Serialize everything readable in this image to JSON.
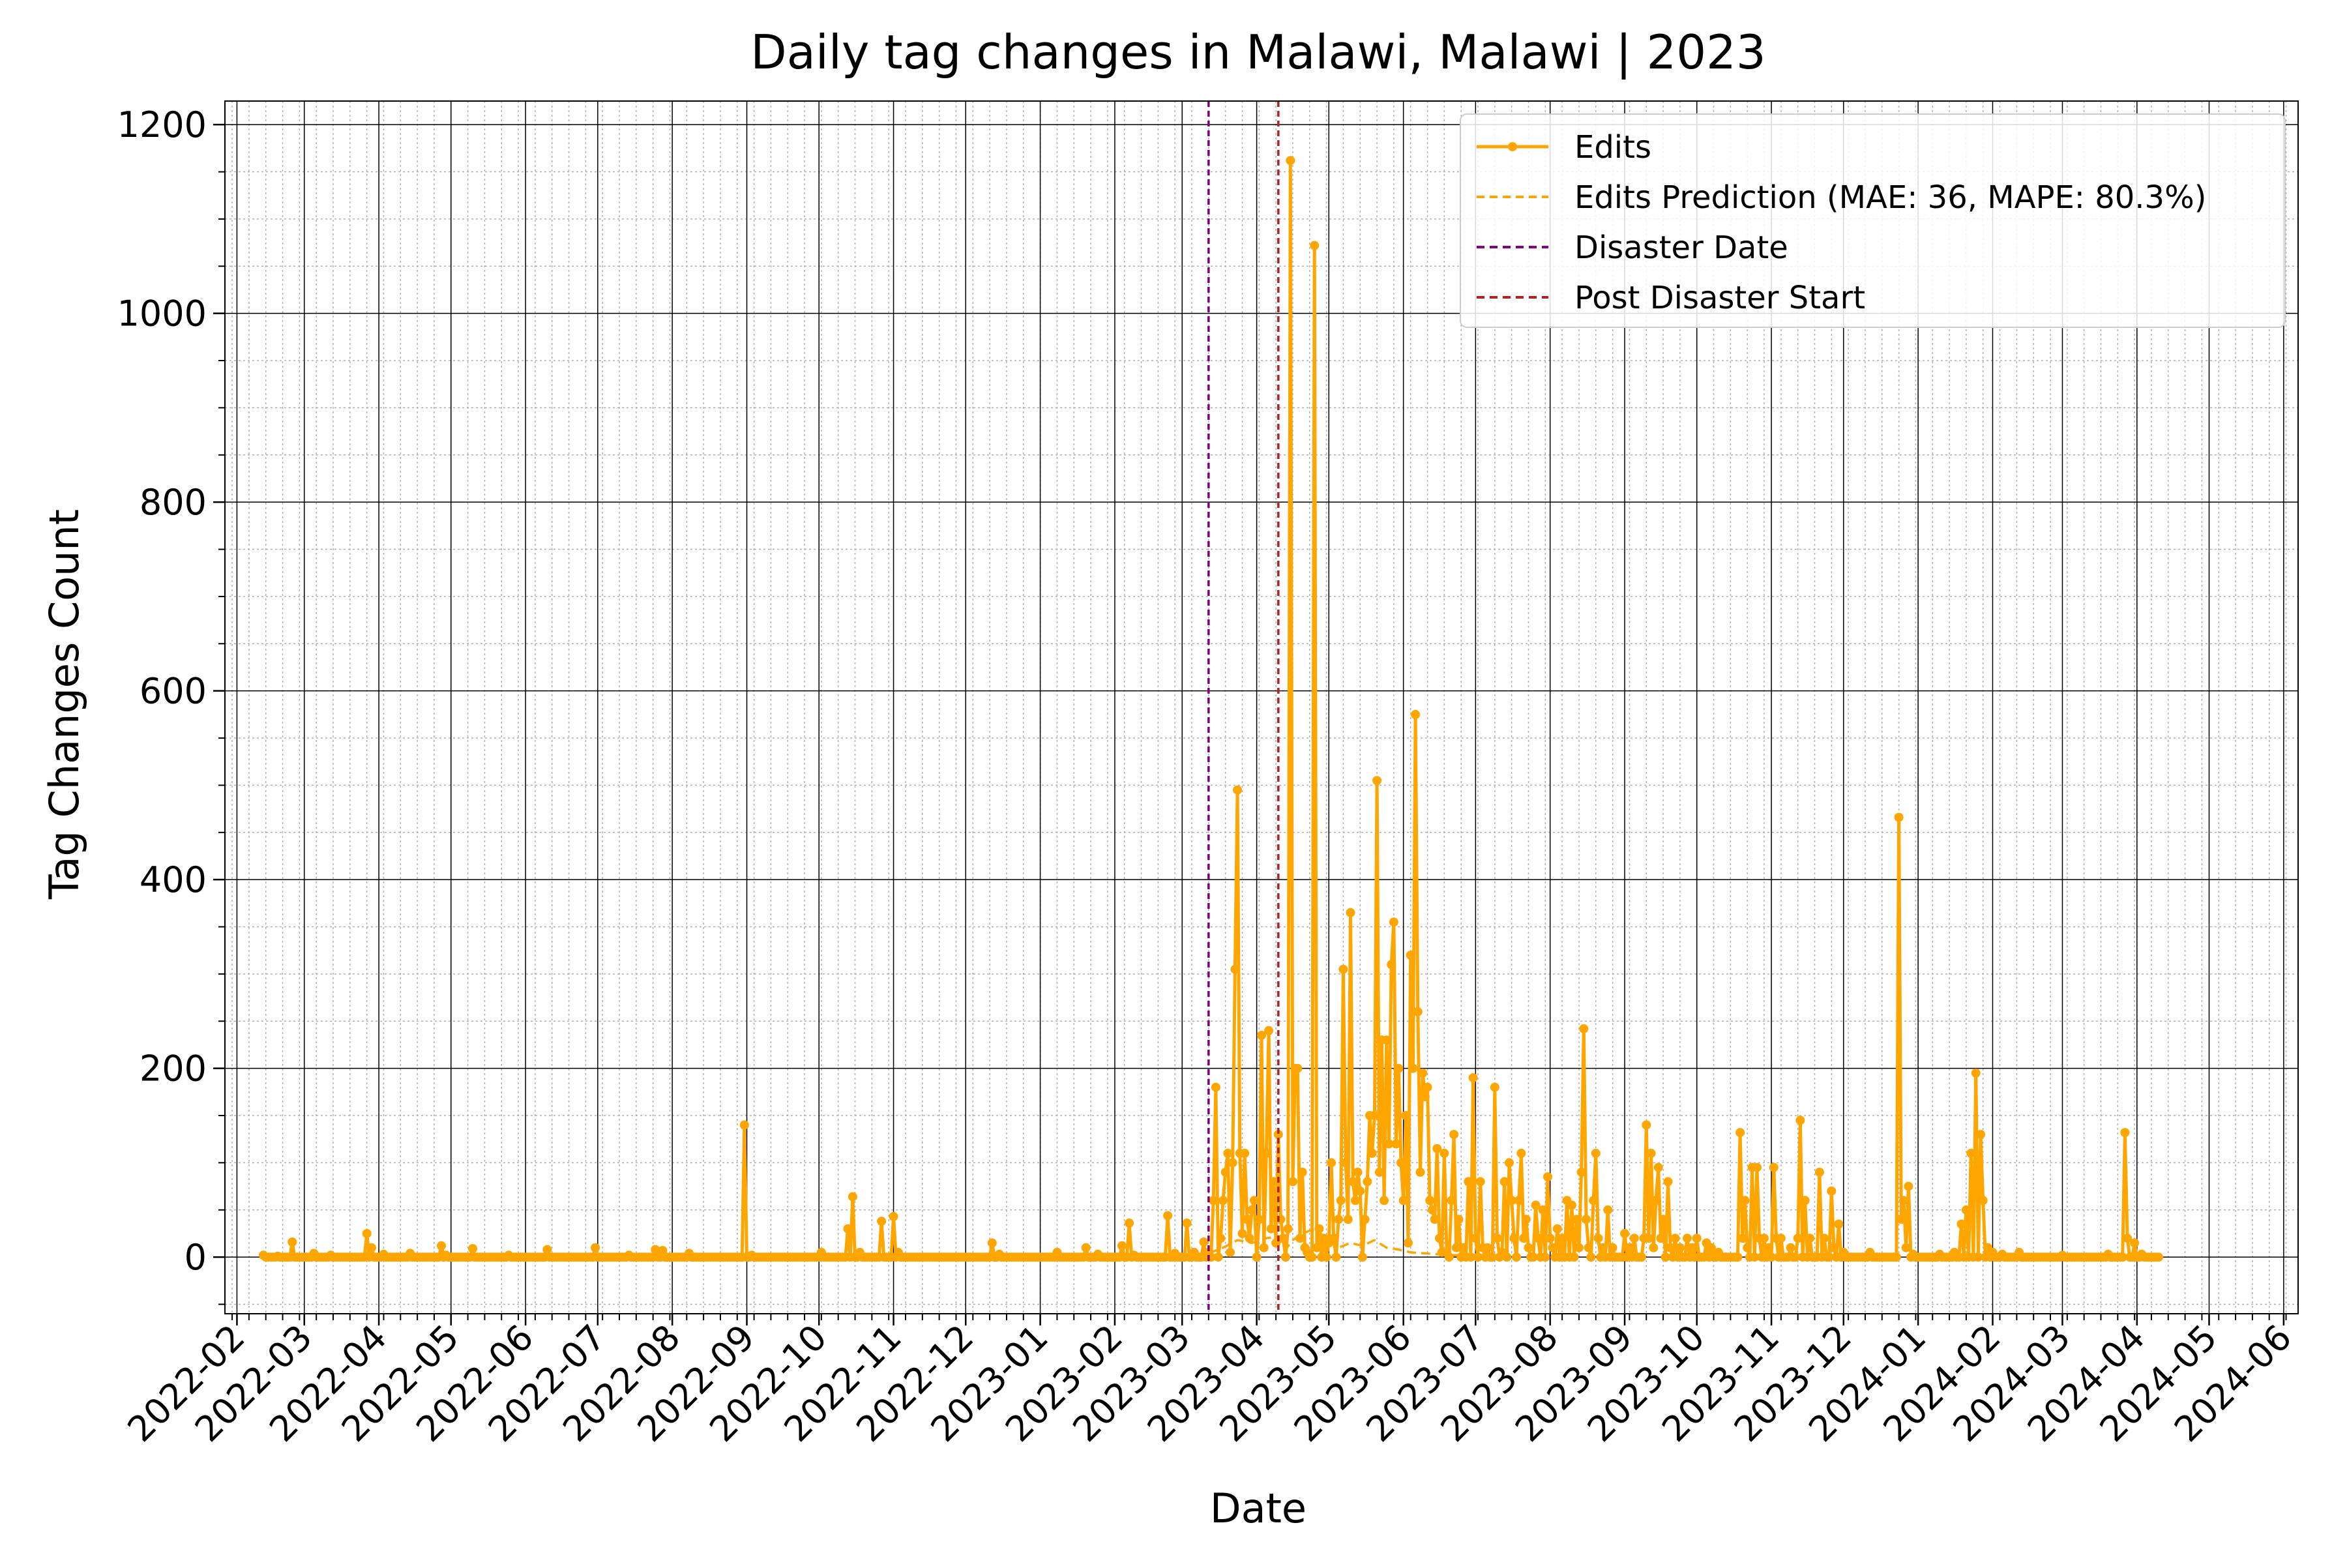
{
  "chart_data": {
    "type": "line",
    "title": "Daily tag changes in Malawi, Malawi | 2023",
    "xlabel": "Date",
    "ylabel": "Tag Changes Count",
    "x_ticks": [
      "2022-02",
      "2022-03",
      "2022-04",
      "2022-05",
      "2022-06",
      "2022-07",
      "2022-08",
      "2022-09",
      "2022-10",
      "2022-11",
      "2022-12",
      "2023-01",
      "2023-02",
      "2023-03",
      "2023-04",
      "2023-05",
      "2023-06",
      "2023-07",
      "2023-08",
      "2023-09",
      "2023-10",
      "2023-11",
      "2023-12",
      "2024-01",
      "2024-02",
      "2024-03",
      "2024-04",
      "2024-05",
      "2024-06"
    ],
    "y_ticks": [
      0,
      200,
      400,
      600,
      800,
      1000,
      1200
    ],
    "xlim": [
      "2022-01-27",
      "2024-06-07"
    ],
    "ylim": [
      -60,
      1225
    ],
    "grid": true,
    "legend_position": "top-right",
    "legend": [
      {
        "label": "Edits",
        "style": "solid-marker",
        "color": "#FFA500"
      },
      {
        "label": "Edits Prediction (MAE: 36, MAPE: 80.3%)",
        "style": "dashed",
        "color": "#FFA500"
      },
      {
        "label": "Disaster Date",
        "style": "dashed",
        "color": "#800080"
      },
      {
        "label": "Post Disaster Start",
        "style": "dashed",
        "color": "#B22222"
      }
    ],
    "vlines": [
      {
        "name": "Disaster Date",
        "date": "2023-03-12",
        "color": "#800080"
      },
      {
        "name": "Post Disaster Start",
        "date": "2023-04-10",
        "color": "#B22222"
      }
    ],
    "series": [
      {
        "name": "Edits",
        "color": "#FFA500",
        "baseline": 0,
        "start": "2022-02-12",
        "end": "2024-04-10",
        "points": [
          [
            "2022-02-12",
            2
          ],
          [
            "2022-02-18",
            1
          ],
          [
            "2022-02-24",
            16
          ],
          [
            "2022-02-26",
            0
          ],
          [
            "2022-03-05",
            4
          ],
          [
            "2022-03-12",
            2
          ],
          [
            "2022-03-27",
            25
          ],
          [
            "2022-03-29",
            10
          ],
          [
            "2022-04-03",
            3
          ],
          [
            "2022-04-14",
            4
          ],
          [
            "2022-04-27",
            12
          ],
          [
            "2022-04-29",
            2
          ],
          [
            "2022-05-10",
            9
          ],
          [
            "2022-05-25",
            2
          ],
          [
            "2022-06-10",
            8
          ],
          [
            "2022-06-30",
            10
          ],
          [
            "2022-07-14",
            2
          ],
          [
            "2022-07-25",
            8
          ],
          [
            "2022-07-28",
            7
          ],
          [
            "2022-08-08",
            4
          ],
          [
            "2022-08-31",
            140
          ],
          [
            "2022-09-03",
            2
          ],
          [
            "2022-10-02",
            5
          ],
          [
            "2022-10-13",
            30
          ],
          [
            "2022-10-15",
            64
          ],
          [
            "2022-10-18",
            5
          ],
          [
            "2022-10-27",
            38
          ],
          [
            "2022-11-01",
            43
          ],
          [
            "2022-11-03",
            5
          ],
          [
            "2022-12-12",
            15
          ],
          [
            "2022-12-15",
            3
          ],
          [
            "2023-01-08",
            5
          ],
          [
            "2023-01-20",
            10
          ],
          [
            "2023-01-25",
            3
          ],
          [
            "2023-02-04",
            12
          ],
          [
            "2023-02-07",
            36
          ],
          [
            "2023-02-09",
            2
          ],
          [
            "2023-02-23",
            44
          ],
          [
            "2023-02-26",
            4
          ],
          [
            "2023-03-03",
            36
          ],
          [
            "2023-03-06",
            5
          ],
          [
            "2023-03-10",
            16
          ],
          [
            "2023-03-12",
            5
          ],
          [
            "2023-03-14",
            60
          ],
          [
            "2023-03-15",
            180
          ],
          [
            "2023-03-17",
            20
          ],
          [
            "2023-03-18",
            60
          ],
          [
            "2023-03-19",
            90
          ],
          [
            "2023-03-20",
            110
          ],
          [
            "2023-03-21",
            5
          ],
          [
            "2023-03-22",
            100
          ],
          [
            "2023-03-23",
            305
          ],
          [
            "2023-03-24",
            495
          ],
          [
            "2023-03-25",
            110
          ],
          [
            "2023-03-26",
            25
          ],
          [
            "2023-03-27",
            110
          ],
          [
            "2023-03-28",
            40
          ],
          [
            "2023-03-29",
            20
          ],
          [
            "2023-03-30",
            50
          ],
          [
            "2023-03-31",
            60
          ],
          [
            "2023-04-02",
            40
          ],
          [
            "2023-04-03",
            235
          ],
          [
            "2023-04-04",
            10
          ],
          [
            "2023-04-05",
            110
          ],
          [
            "2023-04-06",
            240
          ],
          [
            "2023-04-07",
            30
          ],
          [
            "2023-04-08",
            80
          ],
          [
            "2023-04-09",
            15
          ],
          [
            "2023-04-10",
            130
          ],
          [
            "2023-04-11",
            40
          ],
          [
            "2023-04-12",
            20
          ],
          [
            "2023-04-14",
            30
          ],
          [
            "2023-04-15",
            1162
          ],
          [
            "2023-04-16",
            80
          ],
          [
            "2023-04-17",
            200
          ],
          [
            "2023-04-18",
            200
          ],
          [
            "2023-04-19",
            20
          ],
          [
            "2023-04-20",
            90
          ],
          [
            "2023-04-21",
            10
          ],
          [
            "2023-04-22",
            5
          ],
          [
            "2023-04-25",
            1072
          ],
          [
            "2023-04-26",
            10
          ],
          [
            "2023-04-27",
            30
          ],
          [
            "2023-04-29",
            20
          ],
          [
            "2023-05-01",
            15
          ],
          [
            "2023-05-02",
            100
          ],
          [
            "2023-05-03",
            20
          ],
          [
            "2023-05-05",
            40
          ],
          [
            "2023-05-06",
            60
          ],
          [
            "2023-05-07",
            305
          ],
          [
            "2023-05-08",
            100
          ],
          [
            "2023-05-09",
            40
          ],
          [
            "2023-05-10",
            365
          ],
          [
            "2023-05-11",
            80
          ],
          [
            "2023-05-12",
            60
          ],
          [
            "2023-05-13",
            90
          ],
          [
            "2023-05-14",
            70
          ],
          [
            "2023-05-16",
            40
          ],
          [
            "2023-05-17",
            80
          ],
          [
            "2023-05-18",
            150
          ],
          [
            "2023-05-19",
            110
          ],
          [
            "2023-05-20",
            150
          ],
          [
            "2023-05-21",
            505
          ],
          [
            "2023-05-22",
            90
          ],
          [
            "2023-05-23",
            230
          ],
          [
            "2023-05-24",
            60
          ],
          [
            "2023-05-25",
            230
          ],
          [
            "2023-05-26",
            120
          ],
          [
            "2023-05-27",
            310
          ],
          [
            "2023-05-28",
            355
          ],
          [
            "2023-05-29",
            120
          ],
          [
            "2023-05-30",
            200
          ],
          [
            "2023-05-31",
            100
          ],
          [
            "2023-06-01",
            60
          ],
          [
            "2023-06-02",
            150
          ],
          [
            "2023-06-03",
            15
          ],
          [
            "2023-06-04",
            320
          ],
          [
            "2023-06-05",
            200
          ],
          [
            "2023-06-06",
            575
          ],
          [
            "2023-06-07",
            260
          ],
          [
            "2023-06-08",
            90
          ],
          [
            "2023-06-09",
            195
          ],
          [
            "2023-06-10",
            170
          ],
          [
            "2023-06-11",
            180
          ],
          [
            "2023-06-12",
            60
          ],
          [
            "2023-06-13",
            50
          ],
          [
            "2023-06-14",
            40
          ],
          [
            "2023-06-15",
            115
          ],
          [
            "2023-06-16",
            20
          ],
          [
            "2023-06-17",
            5
          ],
          [
            "2023-06-18",
            110
          ],
          [
            "2023-06-19",
            5
          ],
          [
            "2023-06-21",
            60
          ],
          [
            "2023-06-22",
            130
          ],
          [
            "2023-06-23",
            10
          ],
          [
            "2023-06-24",
            40
          ],
          [
            "2023-06-26",
            10
          ],
          [
            "2023-06-28",
            80
          ],
          [
            "2023-06-30",
            190
          ],
          [
            "2023-07-01",
            20
          ],
          [
            "2023-07-03",
            80
          ],
          [
            "2023-07-04",
            10
          ],
          [
            "2023-07-06",
            10
          ],
          [
            "2023-07-09",
            180
          ],
          [
            "2023-07-10",
            20
          ],
          [
            "2023-07-12",
            5
          ],
          [
            "2023-07-13",
            80
          ],
          [
            "2023-07-15",
            100
          ],
          [
            "2023-07-16",
            60
          ],
          [
            "2023-07-17",
            20
          ],
          [
            "2023-07-19",
            60
          ],
          [
            "2023-07-20",
            110
          ],
          [
            "2023-07-21",
            20
          ],
          [
            "2023-07-22",
            40
          ],
          [
            "2023-07-23",
            10
          ],
          [
            "2023-07-26",
            55
          ],
          [
            "2023-07-27",
            20
          ],
          [
            "2023-07-29",
            50
          ],
          [
            "2023-07-31",
            85
          ],
          [
            "2023-08-01",
            20
          ],
          [
            "2023-08-02",
            10
          ],
          [
            "2023-08-04",
            30
          ],
          [
            "2023-08-06",
            20
          ],
          [
            "2023-08-08",
            60
          ],
          [
            "2023-08-10",
            55
          ],
          [
            "2023-08-12",
            40
          ],
          [
            "2023-08-13",
            10
          ],
          [
            "2023-08-14",
            90
          ],
          [
            "2023-08-15",
            242
          ],
          [
            "2023-08-16",
            40
          ],
          [
            "2023-08-17",
            10
          ],
          [
            "2023-08-19",
            60
          ],
          [
            "2023-08-20",
            110
          ],
          [
            "2023-08-21",
            20
          ],
          [
            "2023-08-23",
            10
          ],
          [
            "2023-08-25",
            50
          ],
          [
            "2023-08-27",
            10
          ],
          [
            "2023-09-01",
            25
          ],
          [
            "2023-09-03",
            10
          ],
          [
            "2023-09-05",
            20
          ],
          [
            "2023-09-09",
            20
          ],
          [
            "2023-09-10",
            140
          ],
          [
            "2023-09-11",
            20
          ],
          [
            "2023-09-12",
            110
          ],
          [
            "2023-09-13",
            10
          ],
          [
            "2023-09-14",
            60
          ],
          [
            "2023-09-15",
            95
          ],
          [
            "2023-09-16",
            20
          ],
          [
            "2023-09-17",
            40
          ],
          [
            "2023-09-19",
            80
          ],
          [
            "2023-09-20",
            10
          ],
          [
            "2023-09-22",
            20
          ],
          [
            "2023-09-24",
            10
          ],
          [
            "2023-09-27",
            20
          ],
          [
            "2023-09-29",
            10
          ],
          [
            "2023-10-01",
            20
          ],
          [
            "2023-10-05",
            15
          ],
          [
            "2023-10-07",
            10
          ],
          [
            "2023-10-10",
            5
          ],
          [
            "2023-10-19",
            132
          ],
          [
            "2023-10-20",
            20
          ],
          [
            "2023-10-21",
            60
          ],
          [
            "2023-10-22",
            10
          ],
          [
            "2023-10-24",
            95
          ],
          [
            "2023-10-26",
            95
          ],
          [
            "2023-10-27",
            20
          ],
          [
            "2023-10-29",
            20
          ],
          [
            "2023-10-31",
            10
          ],
          [
            "2023-11-02",
            95
          ],
          [
            "2023-11-03",
            20
          ],
          [
            "2023-11-05",
            20
          ],
          [
            "2023-11-09",
            10
          ],
          [
            "2023-11-12",
            20
          ],
          [
            "2023-11-13",
            145
          ],
          [
            "2023-11-15",
            60
          ],
          [
            "2023-11-17",
            20
          ],
          [
            "2023-11-21",
            90
          ],
          [
            "2023-11-23",
            20
          ],
          [
            "2023-11-26",
            70
          ],
          [
            "2023-11-27",
            10
          ],
          [
            "2023-11-29",
            35
          ],
          [
            "2023-12-01",
            5
          ],
          [
            "2023-12-12",
            5
          ],
          [
            "2023-12-24",
            466
          ],
          [
            "2023-12-25",
            40
          ],
          [
            "2023-12-26",
            60
          ],
          [
            "2023-12-27",
            10
          ],
          [
            "2023-12-28",
            75
          ],
          [
            "2023-12-30",
            3
          ],
          [
            "2024-01-10",
            3
          ],
          [
            "2024-01-16",
            5
          ],
          [
            "2024-01-19",
            35
          ],
          [
            "2024-01-21",
            50
          ],
          [
            "2024-01-23",
            110
          ],
          [
            "2024-01-25",
            195
          ],
          [
            "2024-01-27",
            130
          ],
          [
            "2024-01-28",
            60
          ],
          [
            "2024-01-30",
            10
          ],
          [
            "2024-02-01",
            5
          ],
          [
            "2024-02-05",
            3
          ],
          [
            "2024-02-12",
            5
          ],
          [
            "2024-03-01",
            2
          ],
          [
            "2024-03-20",
            3
          ],
          [
            "2024-03-27",
            132
          ],
          [
            "2024-03-28",
            20
          ],
          [
            "2024-03-31",
            15
          ],
          [
            "2024-04-03",
            3
          ],
          [
            "2024-04-10",
            0
          ]
        ]
      },
      {
        "name": "Edits Prediction (MAE: 36, MAPE: 80.3%)",
        "color": "#FFA500",
        "dashed": true,
        "start": "2023-03-12",
        "end": "2023-06-30",
        "points": [
          [
            "2023-03-12",
            4
          ],
          [
            "2023-03-18",
            10
          ],
          [
            "2023-03-24",
            18
          ],
          [
            "2023-03-30",
            15
          ],
          [
            "2023-04-05",
            20
          ],
          [
            "2023-04-10",
            22
          ],
          [
            "2023-04-13",
            8
          ],
          [
            "2023-04-16",
            18
          ],
          [
            "2023-04-20",
            25
          ],
          [
            "2023-04-25",
            30
          ],
          [
            "2023-04-30",
            20
          ],
          [
            "2023-05-05",
            10
          ],
          [
            "2023-05-10",
            15
          ],
          [
            "2023-05-15",
            12
          ],
          [
            "2023-05-20",
            18
          ],
          [
            "2023-05-25",
            10
          ],
          [
            "2023-05-30",
            8
          ],
          [
            "2023-06-04",
            5
          ],
          [
            "2023-06-10",
            4
          ],
          [
            "2023-06-15",
            3
          ],
          [
            "2023-06-20",
            2
          ],
          [
            "2023-06-25",
            2
          ],
          [
            "2023-06-30",
            2
          ]
        ]
      }
    ]
  }
}
